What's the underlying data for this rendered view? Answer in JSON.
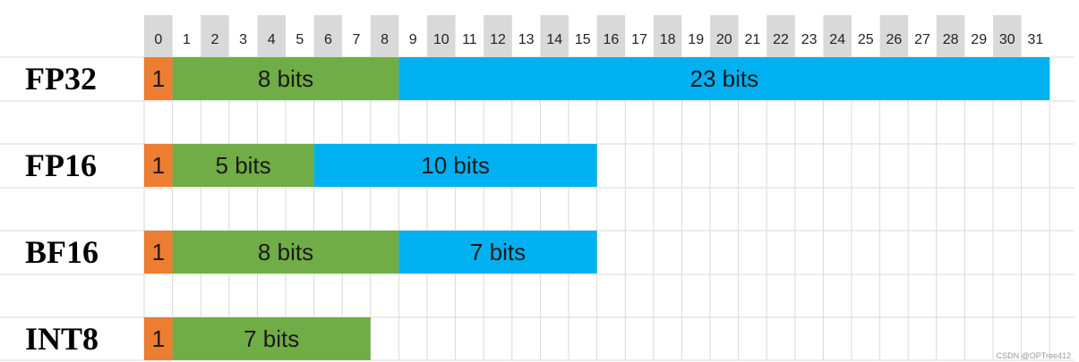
{
  "bit_indices": [
    "0",
    "1",
    "2",
    "3",
    "4",
    "5",
    "6",
    "7",
    "8",
    "9",
    "10",
    "11",
    "12",
    "13",
    "14",
    "15",
    "16",
    "17",
    "18",
    "19",
    "20",
    "21",
    "22",
    "23",
    "24",
    "25",
    "26",
    "27",
    "28",
    "29",
    "30",
    "31"
  ],
  "colors": {
    "sign": "#ED7D31",
    "exponent": "#70AD47",
    "mantissa": "#00B0F0",
    "header_shade": "#D9D9D9",
    "grid": "#D9D9D9"
  },
  "formats": [
    {
      "name": "FP32",
      "segments": [
        {
          "kind": "sign",
          "bits": 1,
          "label": "1"
        },
        {
          "kind": "exponent",
          "bits": 8,
          "label": "8 bits"
        },
        {
          "kind": "mantissa",
          "bits": 23,
          "label": "23 bits"
        }
      ]
    },
    {
      "name": "FP16",
      "segments": [
        {
          "kind": "sign",
          "bits": 1,
          "label": "1"
        },
        {
          "kind": "exponent",
          "bits": 5,
          "label": "5 bits"
        },
        {
          "kind": "mantissa",
          "bits": 10,
          "label": "10 bits"
        }
      ]
    },
    {
      "name": "BF16",
      "segments": [
        {
          "kind": "sign",
          "bits": 1,
          "label": "1"
        },
        {
          "kind": "exponent",
          "bits": 8,
          "label": "8 bits"
        },
        {
          "kind": "mantissa",
          "bits": 7,
          "label": "7 bits"
        }
      ]
    },
    {
      "name": "INT8",
      "segments": [
        {
          "kind": "sign",
          "bits": 1,
          "label": "1"
        },
        {
          "kind": "exponent",
          "bits": 7,
          "label": "7 bits"
        }
      ]
    }
  ],
  "credit": "CSDN @OPTree412"
}
